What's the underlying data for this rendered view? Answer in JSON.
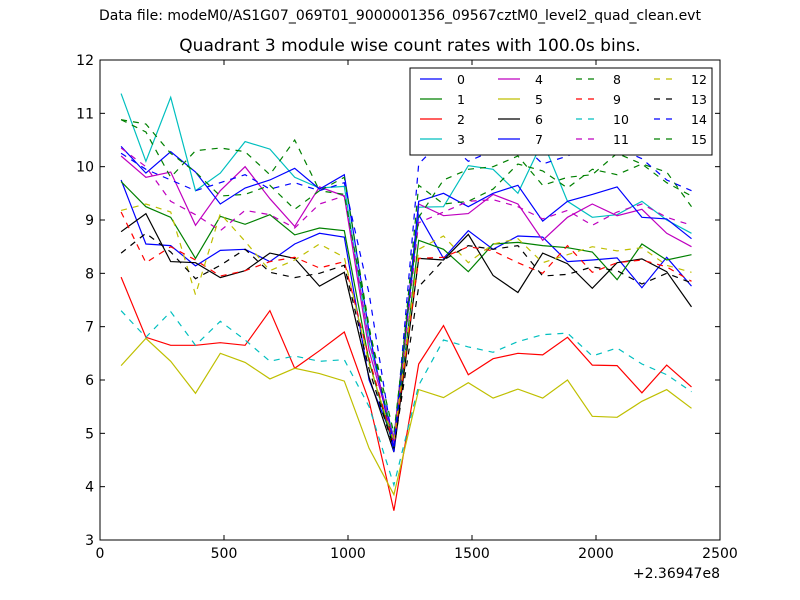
{
  "suptitle": "Data file: modeM0/AS1G07_069T01_9000001356_09567cztM0_level2_quad_clean.evt",
  "chart_data": {
    "type": "line",
    "title": "Quadrant 3 module wise count rates with 100.0s bins.",
    "xlabel": "",
    "ylabel": "",
    "x_offset_label": "+2.36947e8",
    "xlim": [
      0,
      2500
    ],
    "ylim": [
      3,
      12
    ],
    "xticks": [
      0,
      500,
      1000,
      1500,
      2000,
      2500
    ],
    "yticks": [
      3,
      4,
      5,
      6,
      7,
      8,
      9,
      10,
      11,
      12
    ],
    "grid": false,
    "legend_position": "top-right",
    "x": [
      85,
      185,
      285,
      385,
      485,
      585,
      685,
      785,
      885,
      985,
      1085,
      1185,
      1285,
      1385,
      1485,
      1585,
      1685,
      1785,
      1885,
      1985,
      2085,
      2185,
      2285,
      2385
    ],
    "series": [
      {
        "name": "0",
        "color": "#0000ff",
        "dash": "solid",
        "values": [
          9.75,
          8.55,
          8.52,
          8.14,
          8.43,
          8.45,
          8.22,
          8.55,
          8.75,
          8.68,
          6.0,
          4.85,
          9.1,
          8.28,
          8.8,
          8.45,
          8.7,
          8.68,
          8.22,
          8.25,
          8.29,
          7.73,
          8.3,
          7.76
        ]
      },
      {
        "name": "1",
        "color": "#008000",
        "dash": "solid",
        "values": [
          9.72,
          9.25,
          9.05,
          8.28,
          9.07,
          8.92,
          9.1,
          8.72,
          8.85,
          8.8,
          6.35,
          4.72,
          8.62,
          8.45,
          8.03,
          8.55,
          8.58,
          8.52,
          8.48,
          8.4,
          7.88,
          8.55,
          8.25,
          8.35
        ]
      },
      {
        "name": "2",
        "color": "#ff0000",
        "dash": "solid",
        "values": [
          7.93,
          6.8,
          6.65,
          6.65,
          6.7,
          6.65,
          7.3,
          6.22,
          6.55,
          6.9,
          5.6,
          3.55,
          6.3,
          7.02,
          6.1,
          6.4,
          6.5,
          6.47,
          6.8,
          6.28,
          6.27,
          5.76,
          6.28,
          5.87
        ]
      },
      {
        "name": "3",
        "color": "#00bfbf",
        "dash": "solid",
        "values": [
          11.37,
          10.1,
          11.3,
          9.55,
          9.88,
          10.47,
          10.33,
          9.8,
          9.6,
          9.63,
          6.7,
          4.92,
          9.24,
          9.25,
          10.02,
          9.95,
          9.5,
          10.48,
          9.35,
          9.05,
          9.1,
          9.35,
          9.0,
          8.75
        ]
      },
      {
        "name": "4",
        "color": "#bf00bf",
        "dash": "solid",
        "values": [
          10.2,
          9.8,
          9.9,
          8.9,
          9.55,
          10.0,
          9.4,
          8.88,
          9.62,
          9.45,
          6.55,
          4.9,
          9.3,
          9.08,
          9.12,
          9.48,
          9.3,
          8.62,
          9.05,
          9.3,
          9.08,
          9.2,
          8.75,
          8.5
        ]
      },
      {
        "name": "5",
        "color": "#bfbf00",
        "dash": "solid",
        "values": [
          6.27,
          6.78,
          6.35,
          5.75,
          6.5,
          6.33,
          6.02,
          6.22,
          6.12,
          5.98,
          4.72,
          3.85,
          5.82,
          5.67,
          5.95,
          5.66,
          5.83,
          5.66,
          6.0,
          5.32,
          5.3,
          5.6,
          5.82,
          5.47
        ]
      },
      {
        "name": "6",
        "color": "#000000",
        "dash": "solid",
        "values": [
          8.78,
          9.12,
          8.22,
          8.2,
          7.92,
          8.05,
          8.38,
          8.28,
          7.76,
          8.02,
          6.05,
          4.65,
          8.28,
          8.25,
          8.73,
          7.96,
          7.64,
          8.38,
          8.18,
          7.72,
          8.2,
          8.27,
          8.03,
          7.37
        ]
      },
      {
        "name": "7",
        "color": "#0000ff",
        "dash": "solid",
        "values": [
          10.38,
          9.88,
          10.28,
          9.9,
          9.3,
          9.6,
          9.75,
          9.97,
          9.58,
          9.85,
          6.9,
          4.65,
          9.35,
          9.5,
          9.25,
          9.5,
          9.65,
          8.98,
          9.35,
          9.48,
          9.62,
          9.05,
          9.02,
          8.65
        ]
      },
      {
        "name": "8",
        "color": "#008000",
        "dash": "dashed",
        "values": [
          10.88,
          10.65,
          9.8,
          10.3,
          10.35,
          10.28,
          9.85,
          10.5,
          9.55,
          9.8,
          7.0,
          4.72,
          9.65,
          9.3,
          9.35,
          9.58,
          10.05,
          9.92,
          9.6,
          9.95,
          9.85,
          10.05,
          9.9,
          9.25
        ]
      },
      {
        "name": "9",
        "color": "#ff0000",
        "dash": "dashed",
        "values": [
          9.15,
          8.2,
          8.5,
          8.25,
          7.95,
          8.05,
          8.22,
          8.3,
          8.1,
          8.22,
          6.4,
          4.78,
          8.28,
          8.3,
          8.5,
          8.42,
          8.2,
          8.0,
          8.52,
          8.02,
          8.2,
          8.25,
          8.12,
          7.85
        ]
      },
      {
        "name": "10",
        "color": "#00bfbf",
        "dash": "dashed",
        "values": [
          7.3,
          6.8,
          7.28,
          6.65,
          7.1,
          6.75,
          6.35,
          6.45,
          6.35,
          6.38,
          5.5,
          4.03,
          5.9,
          6.75,
          6.62,
          6.52,
          6.72,
          6.85,
          6.88,
          6.45,
          6.6,
          6.3,
          6.1,
          5.78
        ]
      },
      {
        "name": "11",
        "color": "#bf00bf",
        "dash": "dashed",
        "values": [
          10.35,
          10.0,
          9.35,
          9.1,
          8.8,
          9.18,
          9.1,
          8.85,
          9.3,
          9.45,
          6.75,
          4.85,
          8.95,
          9.15,
          9.35,
          9.38,
          9.25,
          9.02,
          9.18,
          8.9,
          9.15,
          9.3,
          9.05,
          8.9
        ]
      },
      {
        "name": "12",
        "color": "#bfbf00",
        "dash": "dashed",
        "values": [
          9.18,
          9.3,
          9.15,
          7.6,
          9.12,
          8.6,
          8.05,
          8.25,
          8.55,
          8.3,
          6.3,
          4.85,
          8.45,
          8.7,
          8.2,
          8.55,
          8.65,
          8.2,
          8.35,
          8.5,
          8.42,
          8.48,
          8.15,
          8.02
        ]
      },
      {
        "name": "13",
        "color": "#000000",
        "dash": "dashed",
        "values": [
          8.38,
          8.75,
          8.4,
          7.9,
          8.15,
          8.45,
          8.02,
          7.92,
          8.0,
          8.15,
          6.2,
          4.72,
          7.75,
          8.25,
          8.52,
          8.45,
          8.52,
          7.95,
          7.98,
          8.12,
          8.05,
          7.8,
          8.0,
          7.82
        ]
      },
      {
        "name": "14",
        "color": "#0000ff",
        "dash": "dashed",
        "values": [
          10.25,
          9.95,
          9.75,
          9.55,
          9.7,
          9.85,
          9.58,
          9.7,
          9.55,
          9.7,
          7.62,
          4.7,
          10.05,
          10.52,
          10.1,
          10.3,
          10.5,
          10.05,
          10.2,
          10.4,
          10.35,
          10.15,
          9.75,
          9.55
        ]
      },
      {
        "name": "15",
        "color": "#008000",
        "dash": "dashed",
        "values": [
          10.88,
          10.8,
          10.25,
          9.9,
          9.45,
          9.48,
          9.65,
          9.2,
          9.55,
          9.48,
          6.95,
          5.0,
          9.05,
          9.75,
          9.95,
          10.0,
          10.2,
          9.65,
          9.8,
          9.85,
          10.25,
          10.05,
          9.7,
          9.45
        ]
      }
    ]
  }
}
